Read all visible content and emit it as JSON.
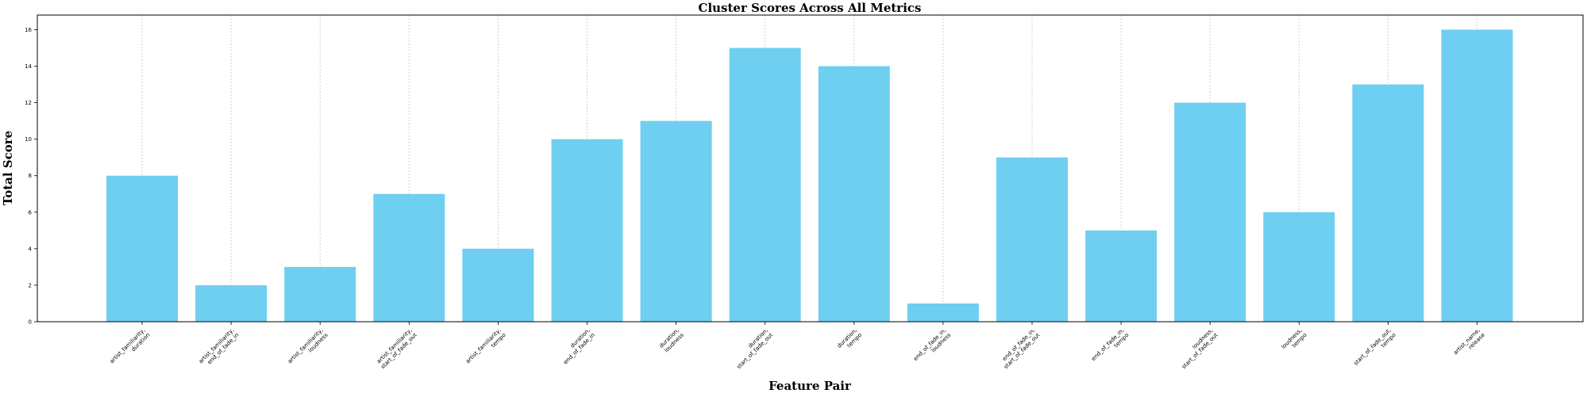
{
  "chart_data": {
    "type": "bar",
    "title": "Cluster Scores Across All Metrics",
    "xlabel": "Feature Pair",
    "ylabel": "Total Score",
    "categories": [
      [
        "artist_familiarity,",
        "duration"
      ],
      [
        "artist_familiarity,",
        "end_of_fade_in"
      ],
      [
        "artist_familiarity,",
        "loudness"
      ],
      [
        "artist_familiarity,",
        "start_of_fade_out"
      ],
      [
        "artist_familiarity,",
        "tempo"
      ],
      [
        "duration,",
        "end_of_fade_in"
      ],
      [
        "duration,",
        "loudness"
      ],
      [
        "duration,",
        "start_of_fade_out"
      ],
      [
        "duration,",
        "tempo"
      ],
      [
        "end_of_fade_in,",
        "loudness"
      ],
      [
        "end_of_fade_in,",
        "start_of_fade_out"
      ],
      [
        "end_of_fade_in,",
        "tempo"
      ],
      [
        "loudness,",
        "start_of_fade_out"
      ],
      [
        "loudness,",
        "tempo"
      ],
      [
        "start_of_fade_out,",
        "tempo"
      ],
      [
        "artist_name,",
        "release"
      ]
    ],
    "values": [
      8,
      2,
      3,
      7,
      4,
      10,
      11,
      15,
      14,
      1,
      9,
      5,
      12,
      6,
      13,
      16
    ],
    "ylim": [
      0,
      16.8
    ],
    "yticks": [
      "0",
      "2",
      "4",
      "6",
      "8",
      "10",
      "12",
      "14",
      "16"
    ],
    "grid": "vertical",
    "bar_color": "#6ecff0"
  }
}
